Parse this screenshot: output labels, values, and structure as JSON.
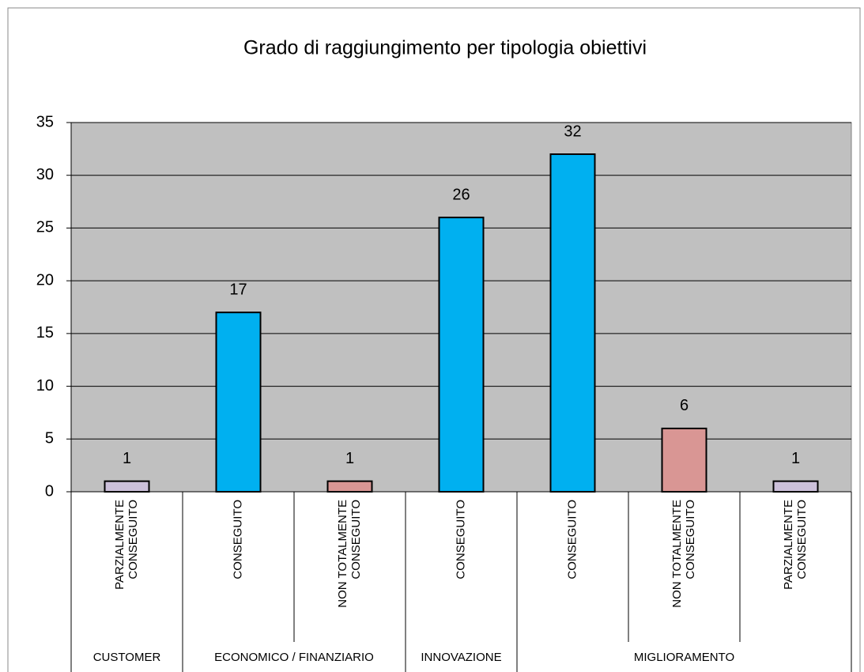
{
  "chart_data": {
    "type": "bar",
    "title": "Grado di raggiungimento per tipologia obiettivi",
    "categories": [
      [
        "PARZIALMENTE",
        "CONSEGUITO"
      ],
      [
        "CONSEGUITO"
      ],
      [
        "NON TOTALMENTE",
        "CONSEGUITO"
      ],
      [
        "CONSEGUITO"
      ],
      [
        "CONSEGUITO"
      ],
      [
        "NON TOTALMENTE",
        "CONSEGUITO"
      ],
      [
        "PARZIALMENTE",
        "CONSEGUITO"
      ]
    ],
    "groups": [
      {
        "name": "CUSTOMER",
        "size": 1
      },
      {
        "name": "ECONOMICO / FINANZIARIO",
        "size": 2
      },
      {
        "name": "INNOVAZIONE",
        "size": 1
      },
      {
        "name": "MIGLIORAMENTO",
        "size": 3
      }
    ],
    "values": [
      1,
      17,
      1,
      26,
      32,
      6,
      1
    ],
    "colors": [
      "#ccc0da",
      "#00b0f0",
      "#d99694",
      "#00b0f0",
      "#00b0f0",
      "#d99694",
      "#ccc0da"
    ],
    "ylim": [
      0,
      35
    ],
    "yticks": [
      0,
      5,
      10,
      15,
      20,
      25,
      30,
      35
    ],
    "grid": true,
    "plot_background": "#c0c0c0"
  }
}
